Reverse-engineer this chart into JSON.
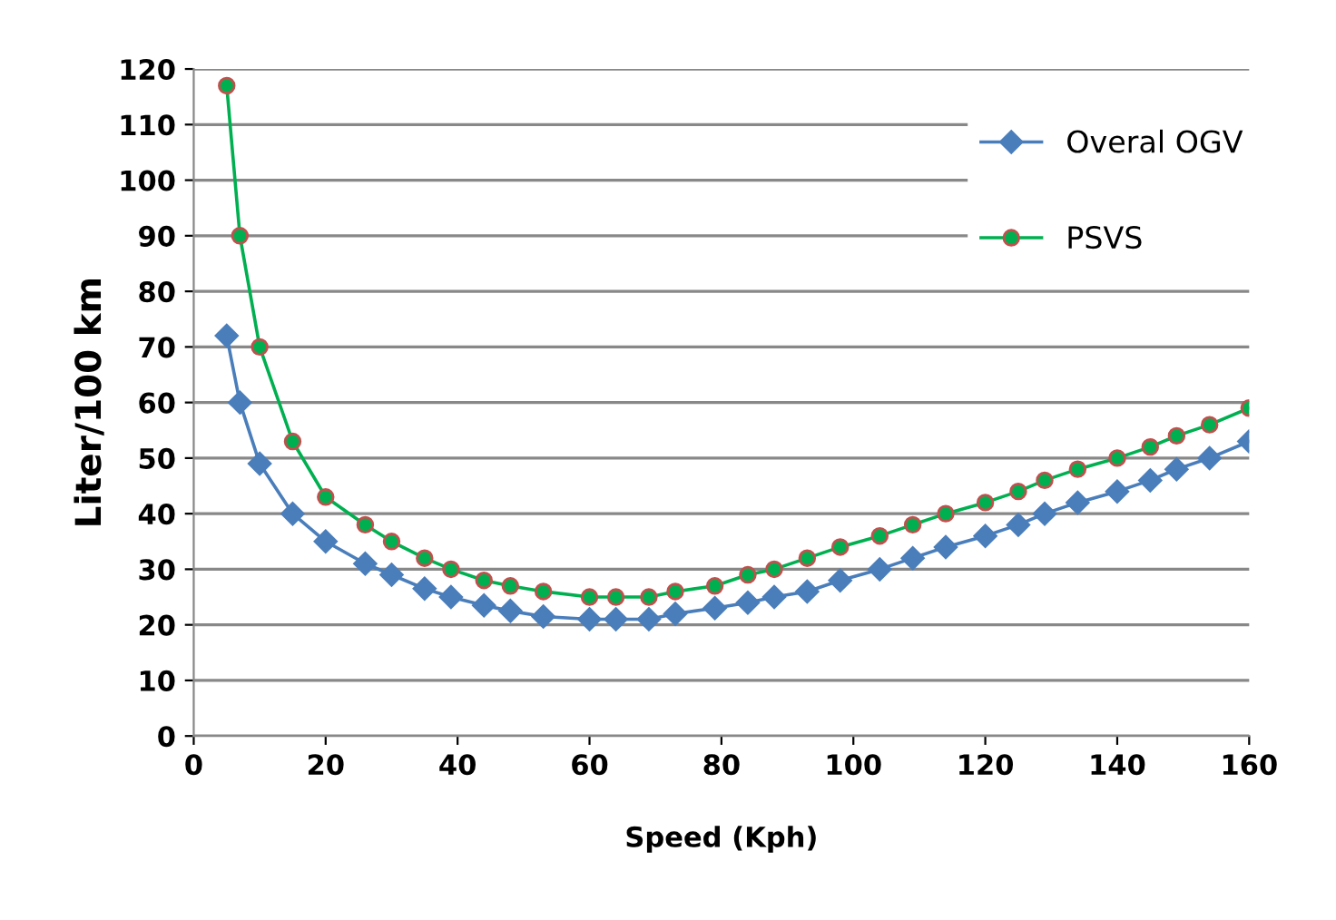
{
  "chart_data": {
    "type": "line",
    "xlabel": "Speed (Kph)",
    "ylabel": "Liter/100 km",
    "x": [
      5,
      7,
      10,
      15,
      20,
      26,
      30,
      35,
      39,
      44,
      48,
      53,
      60,
      64,
      69,
      73,
      79,
      84,
      88,
      93,
      98,
      104,
      109,
      114,
      120,
      125,
      129,
      134,
      140,
      145,
      149,
      154,
      160
    ],
    "series": [
      {
        "name": "Overal OGV",
        "color": "#4a7ebb",
        "marker": "diamond",
        "values": [
          72,
          60,
          49,
          40,
          35,
          31,
          29,
          26.5,
          25,
          23.5,
          22.5,
          21.5,
          21,
          21,
          21,
          22,
          23,
          24,
          25,
          26,
          28,
          30,
          32,
          34,
          36,
          38,
          40,
          42,
          44,
          46,
          48,
          50,
          53
        ]
      },
      {
        "name": "PSVS",
        "color": "#00b050",
        "marker": "circle",
        "values": [
          117,
          90,
          70,
          53,
          43,
          38,
          35,
          32,
          30,
          28,
          27,
          26,
          25,
          25,
          25,
          26,
          27,
          29,
          30,
          32,
          34,
          36,
          38,
          40,
          42,
          44,
          46,
          48,
          50,
          52,
          54,
          56,
          59
        ]
      }
    ],
    "xlim": [
      0,
      160
    ],
    "xticks": [
      0,
      20,
      40,
      60,
      80,
      100,
      120,
      140,
      160
    ],
    "ylim": [
      0,
      120
    ],
    "yticks": [
      0,
      10,
      20,
      30,
      40,
      50,
      60,
      70,
      80,
      90,
      100,
      110,
      120
    ],
    "grid": "y",
    "legend": "top right",
    "line_style": "solid"
  }
}
